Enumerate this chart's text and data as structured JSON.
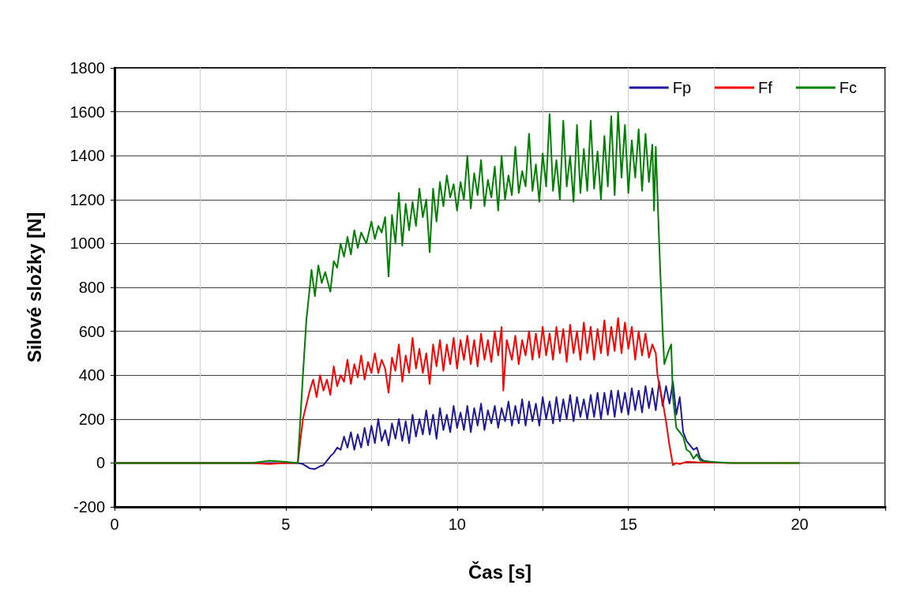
{
  "chart_data": {
    "type": "line",
    "xlabel": "Čas [s]",
    "ylabel": "Silové složky [N]",
    "xlim": [
      0,
      22.5
    ],
    "xticks": [
      0,
      {
        "value": 2.5,
        "label": null
      },
      5,
      {
        "value": 7.5,
        "label": null
      },
      10,
      {
        "value": 12.5,
        "label": null
      },
      15,
      {
        "value": 17.5,
        "label": null
      },
      20,
      {
        "value": 22.5,
        "label": null
      }
    ],
    "ylim": [
      -200,
      1800
    ],
    "yticks": [
      -200,
      0,
      200,
      400,
      600,
      800,
      1000,
      1200,
      1400,
      1600,
      1800
    ],
    "grid": true,
    "legend": "top right",
    "marker": "none",
    "line_style": "solid",
    "series": [
      {
        "name": "Fp",
        "color": "#1f1a9a",
        "x": [
          0,
          5.35,
          5.5,
          5.7,
          5.85,
          6.0,
          6.1,
          6.2,
          6.3,
          6.4,
          6.5,
          6.6,
          6.7,
          6.8,
          6.9,
          7.0,
          7.1,
          7.2,
          7.3,
          7.4,
          7.5,
          7.6,
          7.7,
          7.8,
          7.9,
          8.0,
          8.1,
          8.2,
          8.3,
          8.4,
          8.5,
          8.6,
          8.7,
          8.8,
          8.9,
          9.0,
          9.1,
          9.2,
          9.3,
          9.4,
          9.5,
          9.6,
          9.7,
          9.8,
          9.9,
          10.0,
          10.1,
          10.2,
          10.3,
          10.4,
          10.5,
          10.6,
          10.7,
          10.8,
          10.9,
          11.0,
          11.1,
          11.2,
          11.3,
          11.4,
          11.5,
          11.6,
          11.7,
          11.8,
          11.9,
          12.0,
          12.1,
          12.2,
          12.3,
          12.4,
          12.5,
          12.6,
          12.7,
          12.8,
          12.9,
          13.0,
          13.1,
          13.2,
          13.3,
          13.4,
          13.5,
          13.6,
          13.7,
          13.8,
          13.9,
          14.0,
          14.1,
          14.2,
          14.3,
          14.4,
          14.5,
          14.6,
          14.7,
          14.8,
          14.9,
          15.0,
          15.1,
          15.2,
          15.3,
          15.4,
          15.5,
          15.6,
          15.7,
          15.8,
          15.9,
          16.0,
          16.1,
          16.2,
          16.3,
          16.4,
          16.5,
          16.6,
          16.7,
          16.8,
          16.9,
          17.0,
          17.1,
          17.2,
          17.5
        ],
        "values": [
          0,
          0,
          -5,
          -25,
          -28,
          -15,
          -10,
          10,
          30,
          45,
          70,
          60,
          120,
          70,
          140,
          60,
          130,
          70,
          160,
          80,
          170,
          90,
          200,
          100,
          150,
          80,
          180,
          110,
          200,
          100,
          190,
          90,
          220,
          120,
          200,
          130,
          240,
          130,
          220,
          110,
          250,
          150,
          220,
          140,
          260,
          160,
          230,
          150,
          260,
          140,
          250,
          170,
          270,
          150,
          240,
          180,
          260,
          160,
          250,
          190,
          280,
          170,
          260,
          180,
          290,
          170,
          280,
          190,
          270,
          170,
          300,
          200,
          280,
          180,
          300,
          190,
          290,
          200,
          310,
          190,
          300,
          210,
          290,
          200,
          310,
          210,
          320,
          200,
          320,
          220,
          330,
          210,
          330,
          230,
          320,
          220,
          340,
          240,
          330,
          230,
          350,
          250,
          340,
          240,
          370,
          260,
          350,
          270,
          370,
          220,
          300,
          140,
          100,
          80,
          60,
          70,
          20,
          10,
          3
        ]
      },
      {
        "name": "Ff",
        "color": "#ff0000",
        "x": [
          0,
          4.0,
          4.5,
          5.0,
          5.35,
          5.5,
          5.7,
          5.8,
          5.9,
          6.0,
          6.1,
          6.2,
          6.3,
          6.4,
          6.5,
          6.6,
          6.7,
          6.8,
          6.9,
          7.0,
          7.1,
          7.2,
          7.3,
          7.4,
          7.5,
          7.6,
          7.7,
          7.8,
          7.9,
          8.0,
          8.1,
          8.2,
          8.3,
          8.4,
          8.5,
          8.6,
          8.7,
          8.8,
          8.9,
          9.0,
          9.1,
          9.2,
          9.3,
          9.4,
          9.5,
          9.6,
          9.7,
          9.8,
          9.9,
          10.0,
          10.1,
          10.2,
          10.3,
          10.4,
          10.5,
          10.6,
          10.7,
          10.8,
          10.9,
          11.0,
          11.1,
          11.2,
          11.3,
          11.35,
          11.45,
          11.6,
          11.7,
          11.8,
          11.9,
          12.0,
          12.1,
          12.2,
          12.3,
          12.4,
          12.5,
          12.6,
          12.7,
          12.8,
          12.9,
          13.0,
          13.1,
          13.2,
          13.3,
          13.4,
          13.5,
          13.6,
          13.7,
          13.8,
          13.9,
          14.0,
          14.1,
          14.2,
          14.3,
          14.4,
          14.5,
          14.6,
          14.7,
          14.8,
          14.9,
          15.0,
          15.1,
          15.2,
          15.3,
          15.4,
          15.5,
          15.6,
          15.7,
          15.8,
          15.85,
          15.95,
          16.0,
          16.1,
          16.2,
          16.3,
          16.4,
          16.5,
          16.7,
          17.0,
          18.0,
          20.0
        ],
        "values": [
          0,
          0,
          -5,
          0,
          0,
          200,
          330,
          380,
          300,
          400,
          330,
          380,
          310,
          440,
          350,
          400,
          370,
          470,
          360,
          450,
          390,
          490,
          380,
          460,
          410,
          500,
          410,
          470,
          430,
          320,
          480,
          420,
          540,
          370,
          490,
          410,
          570,
          430,
          520,
          410,
          500,
          360,
          540,
          440,
          560,
          420,
          540,
          450,
          570,
          430,
          560,
          470,
          580,
          450,
          560,
          440,
          590,
          470,
          560,
          460,
          600,
          490,
          620,
          330,
          560,
          470,
          580,
          450,
          560,
          490,
          600,
          470,
          590,
          480,
          620,
          490,
          590,
          470,
          620,
          500,
          610,
          460,
          630,
          500,
          600,
          470,
          640,
          500,
          620,
          470,
          610,
          500,
          650,
          490,
          620,
          510,
          660,
          500,
          640,
          520,
          620,
          470,
          600,
          490,
          590,
          480,
          540,
          500,
          400,
          320,
          280,
          190,
          80,
          -10,
          0,
          -5,
          5,
          3,
          0,
          0
        ]
      },
      {
        "name": "Fc",
        "color": "#008000",
        "x": [
          0,
          4.0,
          4.5,
          5.0,
          5.35,
          5.5,
          5.6,
          5.7,
          5.75,
          5.85,
          5.95,
          6.05,
          6.15,
          6.3,
          6.4,
          6.5,
          6.6,
          6.7,
          6.8,
          6.9,
          7.0,
          7.1,
          7.2,
          7.35,
          7.5,
          7.6,
          7.7,
          7.8,
          7.9,
          8.0,
          8.1,
          8.2,
          8.3,
          8.4,
          8.5,
          8.6,
          8.7,
          8.8,
          8.9,
          9.0,
          9.1,
          9.2,
          9.3,
          9.4,
          9.5,
          9.6,
          9.7,
          9.8,
          9.9,
          10.0,
          10.1,
          10.2,
          10.3,
          10.4,
          10.5,
          10.6,
          10.7,
          10.8,
          10.9,
          11.0,
          11.1,
          11.2,
          11.3,
          11.4,
          11.5,
          11.6,
          11.7,
          11.8,
          11.9,
          12.0,
          12.1,
          12.2,
          12.3,
          12.4,
          12.5,
          12.6,
          12.7,
          12.8,
          12.9,
          13.0,
          13.1,
          13.2,
          13.3,
          13.4,
          13.5,
          13.6,
          13.7,
          13.8,
          13.9,
          14.0,
          14.1,
          14.2,
          14.3,
          14.4,
          14.5,
          14.6,
          14.7,
          14.8,
          14.9,
          15.0,
          15.1,
          15.2,
          15.3,
          15.4,
          15.5,
          15.6,
          15.7,
          15.75,
          15.8,
          15.9,
          15.95,
          16.0,
          16.05,
          16.15,
          16.25,
          16.3,
          16.4,
          16.5,
          16.6,
          16.7,
          16.8,
          16.9,
          17.0,
          17.1,
          17.4,
          18.0,
          20.0
        ],
        "values": [
          0,
          0,
          10,
          5,
          0,
          400,
          650,
          800,
          880,
          760,
          900,
          820,
          870,
          780,
          920,
          890,
          1000,
          940,
          1030,
          950,
          1060,
          980,
          1050,
          1000,
          1100,
          1020,
          1080,
          1050,
          1120,
          850,
          1130,
          1000,
          1230,
          990,
          1180,
          1060,
          1190,
          1080,
          1250,
          1120,
          1200,
          960,
          1250,
          1100,
          1280,
          1170,
          1310,
          1210,
          1270,
          1150,
          1280,
          1200,
          1400,
          1160,
          1320,
          1220,
          1380,
          1170,
          1290,
          1210,
          1350,
          1150,
          1400,
          1200,
          1310,
          1220,
          1440,
          1230,
          1330,
          1260,
          1500,
          1240,
          1360,
          1190,
          1410,
          1260,
          1590,
          1240,
          1380,
          1200,
          1560,
          1260,
          1400,
          1190,
          1540,
          1230,
          1430,
          1240,
          1560,
          1250,
          1420,
          1200,
          1490,
          1260,
          1580,
          1220,
          1600,
          1300,
          1540,
          1230,
          1470,
          1300,
          1520,
          1240,
          1500,
          1280,
          1450,
          1150,
          1440,
          1000,
          800,
          600,
          450,
          500,
          540,
          300,
          160,
          140,
          120,
          60,
          50,
          20,
          40,
          10,
          5,
          0,
          0
        ]
      }
    ]
  }
}
